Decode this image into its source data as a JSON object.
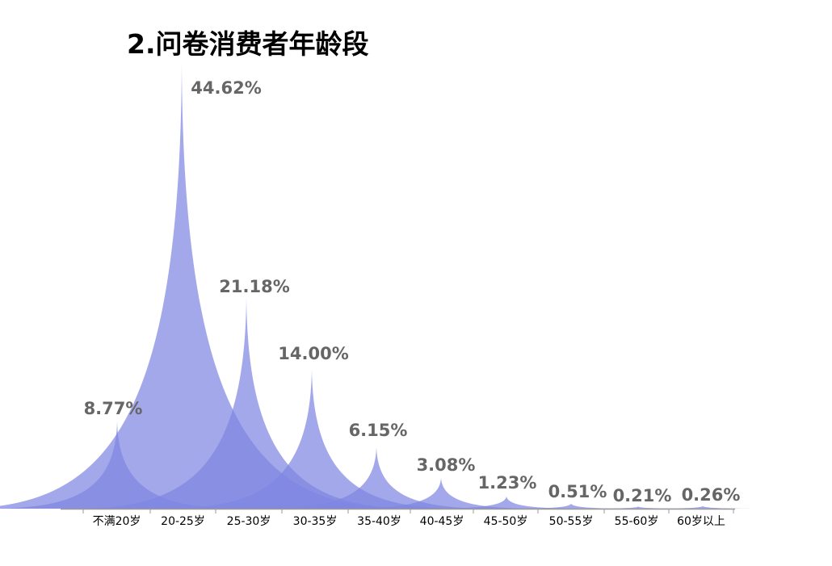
{
  "chart_data": {
    "type": "area",
    "title": "2.问卷消费者年龄段",
    "xlabel": "",
    "ylabel": "",
    "categories": [
      "不满20岁",
      "20-25岁",
      "25-30岁",
      "30-35岁",
      "35-40岁",
      "40-45岁",
      "45-50岁",
      "50-55岁",
      "55-60岁",
      "60岁以上"
    ],
    "values": [
      8.77,
      44.62,
      21.18,
      14.0,
      6.15,
      3.08,
      1.23,
      0.51,
      0.21,
      0.26
    ],
    "value_labels": [
      "8.77%",
      "44.62%",
      "21.18%",
      "14.00%",
      "6.15%",
      "3.08%",
      "1.23%",
      "0.51%",
      "0.21%",
      "0.26%"
    ],
    "ylim": [
      0,
      44.62
    ],
    "grid": false,
    "legend": "none",
    "colors": {
      "fill": "#7f86e2",
      "label": "#666666",
      "axis": "#9a9a9a"
    }
  }
}
